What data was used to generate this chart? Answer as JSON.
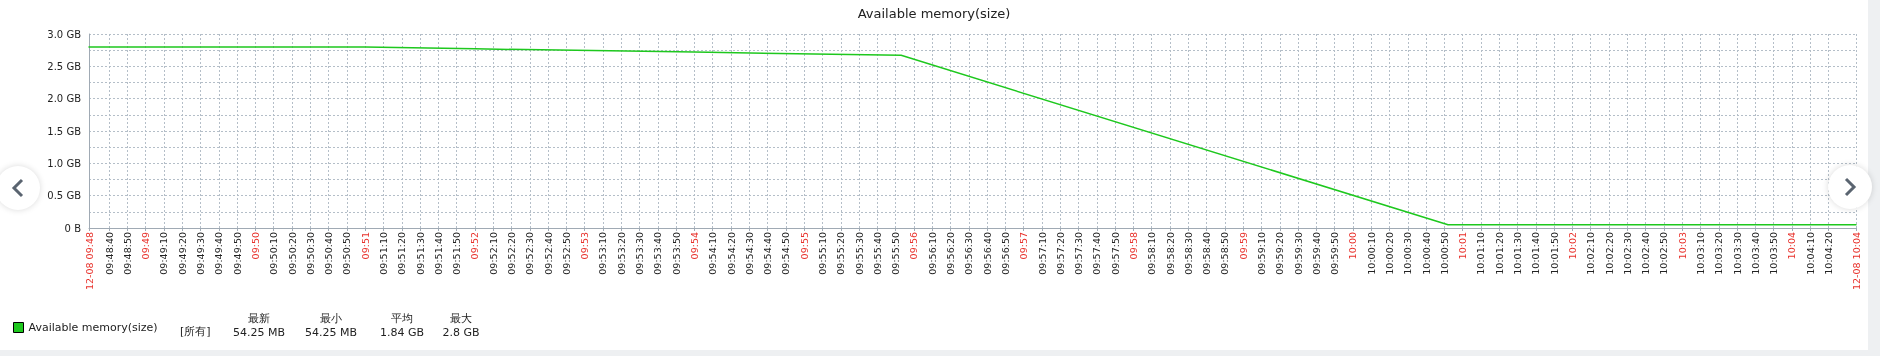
{
  "chart_data": {
    "type": "line",
    "title": "Available memory(size)",
    "x": [
      9.80806,
      9.85,
      9.86667,
      9.9,
      9.93139,
      10.01444,
      10.07639
    ],
    "series": [
      {
        "name": "Available memory(size)",
        "color": "#1ec81e",
        "values": [
          2.8,
          2.8,
          2.77,
          2.72,
          2.67,
          0.05,
          0.05
        ]
      }
    ],
    "xlim": [
      9.80806,
      10.07639
    ],
    "xticks": [
      {
        "value": 9.80806,
        "label": "12-08 09:48"
      },
      {
        "value": 9.81111,
        "label": "09:48:40"
      },
      {
        "value": 9.81389,
        "label": "09:48:50"
      },
      {
        "value": 9.81667,
        "label": "09:49"
      },
      {
        "value": 9.81944,
        "label": "09:49:10"
      },
      {
        "value": 9.82222,
        "label": "09:49:20"
      },
      {
        "value": 9.825,
        "label": "09:49:30"
      },
      {
        "value": 9.82778,
        "label": "09:49:40"
      },
      {
        "value": 9.83056,
        "label": "09:49:50"
      },
      {
        "value": 9.83333,
        "label": "09:50"
      },
      {
        "value": 9.83611,
        "label": "09:50:10"
      },
      {
        "value": 9.83889,
        "label": "09:50:20"
      },
      {
        "value": 9.84167,
        "label": "09:50:30"
      },
      {
        "value": 9.84444,
        "label": "09:50:40"
      },
      {
        "value": 9.84722,
        "label": "09:50:50"
      },
      {
        "value": 9.85,
        "label": "09:51"
      },
      {
        "value": 9.85278,
        "label": "09:51:10"
      },
      {
        "value": 9.85556,
        "label": "09:51:20"
      },
      {
        "value": 9.85833,
        "label": "09:51:30"
      },
      {
        "value": 9.86111,
        "label": "09:51:40"
      },
      {
        "value": 9.86389,
        "label": "09:51:50"
      },
      {
        "value": 9.86667,
        "label": "09:52"
      },
      {
        "value": 9.86944,
        "label": "09:52:10"
      },
      {
        "value": 9.87222,
        "label": "09:52:20"
      },
      {
        "value": 9.875,
        "label": "09:52:30"
      },
      {
        "value": 9.87778,
        "label": "09:52:40"
      },
      {
        "value": 9.88056,
        "label": "09:52:50"
      },
      {
        "value": 9.88333,
        "label": "09:53"
      },
      {
        "value": 9.88611,
        "label": "09:53:10"
      },
      {
        "value": 9.88889,
        "label": "09:53:20"
      },
      {
        "value": 9.89167,
        "label": "09:53:30"
      },
      {
        "value": 9.89444,
        "label": "09:53:40"
      },
      {
        "value": 9.89722,
        "label": "09:53:50"
      },
      {
        "value": 9.9,
        "label": "09:54"
      },
      {
        "value": 9.90278,
        "label": "09:54:10"
      },
      {
        "value": 9.90556,
        "label": "09:54:20"
      },
      {
        "value": 9.90833,
        "label": "09:54:30"
      },
      {
        "value": 9.91111,
        "label": "09:54:40"
      },
      {
        "value": 9.91389,
        "label": "09:54:50"
      },
      {
        "value": 9.91667,
        "label": "09:55"
      },
      {
        "value": 9.91944,
        "label": "09:55:10"
      },
      {
        "value": 9.92222,
        "label": "09:55:20"
      },
      {
        "value": 9.925,
        "label": "09:55:30"
      },
      {
        "value": 9.92778,
        "label": "09:55:40"
      },
      {
        "value": 9.93056,
        "label": "09:55:50"
      },
      {
        "value": 9.93333,
        "label": "09:56"
      },
      {
        "value": 9.93611,
        "label": "09:56:10"
      },
      {
        "value": 9.93889,
        "label": "09:56:20"
      },
      {
        "value": 9.94167,
        "label": "09:56:30"
      },
      {
        "value": 9.94444,
        "label": "09:56:40"
      },
      {
        "value": 9.94722,
        "label": "09:56:50"
      },
      {
        "value": 9.95,
        "label": "09:57"
      },
      {
        "value": 9.95278,
        "label": "09:57:10"
      },
      {
        "value": 9.95556,
        "label": "09:57:20"
      },
      {
        "value": 9.95833,
        "label": "09:57:30"
      },
      {
        "value": 9.96111,
        "label": "09:57:40"
      },
      {
        "value": 9.96389,
        "label": "09:57:50"
      },
      {
        "value": 9.96667,
        "label": "09:58"
      },
      {
        "value": 9.96944,
        "label": "09:58:10"
      },
      {
        "value": 9.97222,
        "label": "09:58:20"
      },
      {
        "value": 9.975,
        "label": "09:58:30"
      },
      {
        "value": 9.97778,
        "label": "09:58:40"
      },
      {
        "value": 9.98056,
        "label": "09:58:50"
      },
      {
        "value": 9.98333,
        "label": "09:59"
      },
      {
        "value": 9.98611,
        "label": "09:59:10"
      },
      {
        "value": 9.98889,
        "label": "09:59:20"
      },
      {
        "value": 9.99167,
        "label": "09:59:30"
      },
      {
        "value": 9.99444,
        "label": "09:59:40"
      },
      {
        "value": 9.99722,
        "label": "09:59:50"
      },
      {
        "value": 10.0,
        "label": "10:00"
      },
      {
        "value": 10.00278,
        "label": "10:00:10"
      },
      {
        "value": 10.00556,
        "label": "10:00:20"
      },
      {
        "value": 10.00833,
        "label": "10:00:30"
      },
      {
        "value": 10.01111,
        "label": "10:00:40"
      },
      {
        "value": 10.01389,
        "label": "10:00:50"
      },
      {
        "value": 10.01667,
        "label": "10:01"
      },
      {
        "value": 10.01944,
        "label": "10:01:10"
      },
      {
        "value": 10.02222,
        "label": "10:01:20"
      },
      {
        "value": 10.025,
        "label": "10:01:30"
      },
      {
        "value": 10.02778,
        "label": "10:01:40"
      },
      {
        "value": 10.03056,
        "label": "10:01:50"
      },
      {
        "value": 10.03333,
        "label": "10:02"
      },
      {
        "value": 10.03611,
        "label": "10:02:10"
      },
      {
        "value": 10.03889,
        "label": "10:02:20"
      },
      {
        "value": 10.04167,
        "label": "10:02:30"
      },
      {
        "value": 10.04444,
        "label": "10:02:40"
      },
      {
        "value": 10.04722,
        "label": "10:02:50"
      },
      {
        "value": 10.05,
        "label": "10:03"
      },
      {
        "value": 10.05278,
        "label": "10:03:10"
      },
      {
        "value": 10.05556,
        "label": "10:03:20"
      },
      {
        "value": 10.05833,
        "label": "10:03:30"
      },
      {
        "value": 10.06111,
        "label": "10:03:40"
      },
      {
        "value": 10.06389,
        "label": "10:03:50"
      },
      {
        "value": 10.06667,
        "label": "10:04"
      },
      {
        "value": 10.06944,
        "label": "10:04:10"
      },
      {
        "value": 10.07222,
        "label": "10:04:20"
      },
      {
        "value": 10.07639,
        "label": "12-08 10:04"
      }
    ],
    "ylim": [
      0,
      3
    ],
    "yticks": [
      {
        "value": 0,
        "label": "0 B"
      },
      {
        "value": 0.25,
        "label": null
      },
      {
        "value": 0.5,
        "label": "0.5 GB"
      },
      {
        "value": 0.75,
        "label": null
      },
      {
        "value": 1,
        "label": "1.0 GB"
      },
      {
        "value": 1.25,
        "label": null
      },
      {
        "value": 1.5,
        "label": "1.5 GB"
      },
      {
        "value": 1.75,
        "label": null
      },
      {
        "value": 2,
        "label": "2.0 GB"
      },
      {
        "value": 2.25,
        "label": null
      },
      {
        "value": 2.5,
        "label": "2.5 GB"
      },
      {
        "value": 2.75,
        "label": null
      },
      {
        "value": 3,
        "label": "3.0 GB"
      }
    ],
    "grid": true,
    "legend": "bottom left",
    "marker": "none",
    "line_style": "solid",
    "annotations": [
      "[所有]",
      "最新",
      "54.25 MB",
      "最小",
      "54.25 MB",
      "平均",
      "1.84 GB",
      "最大",
      "2.8 GB"
    ]
  }
}
